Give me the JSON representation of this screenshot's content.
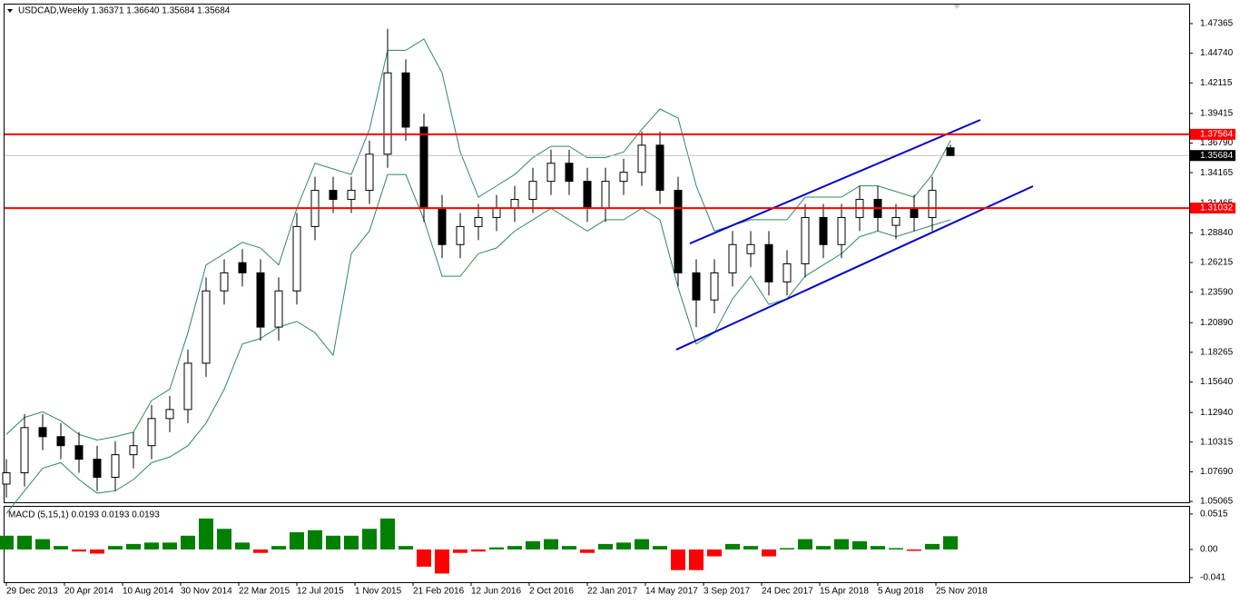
{
  "chart_data": {
    "type": "candlestick",
    "title": "USDCAD,Weekly  1.36371 1.36640 1.35684 1.35684",
    "x": [
      0,
      5,
      10,
      15,
      20,
      25,
      30,
      35,
      40,
      45,
      50,
      55,
      60,
      65,
      70,
      75,
      80,
      85,
      90,
      95,
      100,
      105,
      110,
      115,
      120,
      125,
      130,
      135,
      140,
      145,
      150,
      155,
      160,
      165,
      170,
      175,
      180,
      185,
      190,
      195,
      200,
      205,
      210,
      215,
      220,
      225,
      230,
      235,
      240,
      245,
      250,
      255,
      260
    ],
    "open": [
      1.066,
      1.076,
      1.116,
      1.108,
      1.1,
      1.088,
      1.072,
      1.092,
      1.1,
      1.124,
      1.132,
      1.173,
      1.237,
      1.262,
      1.253,
      1.205,
      1.237,
      1.294,
      1.326,
      1.318,
      1.326,
      1.358,
      1.43,
      1.382,
      1.31,
      1.278,
      1.294,
      1.302,
      1.31,
      1.318,
      1.334,
      1.35,
      1.334,
      1.31,
      1.334,
      1.342,
      1.366,
      1.326,
      1.253,
      1.229,
      1.253,
      1.27,
      1.278,
      1.245,
      1.261,
      1.302,
      1.278,
      1.302,
      1.318,
      1.295,
      1.31,
      1.302,
      1.36371
    ],
    "high": [
      1.088,
      1.128,
      1.128,
      1.12,
      1.112,
      1.1,
      1.104,
      1.112,
      1.136,
      1.144,
      1.185,
      1.249,
      1.265,
      1.274,
      1.265,
      1.249,
      1.306,
      1.338,
      1.338,
      1.338,
      1.37,
      1.469,
      1.442,
      1.394,
      1.322,
      1.306,
      1.314,
      1.322,
      1.33,
      1.346,
      1.362,
      1.362,
      1.346,
      1.346,
      1.354,
      1.378,
      1.378,
      1.338,
      1.265,
      1.265,
      1.29,
      1.29,
      1.29,
      1.273,
      1.314,
      1.314,
      1.314,
      1.33,
      1.33,
      1.314,
      1.322,
      1.338,
      1.3664
    ],
    "low": [
      1.054,
      1.064,
      1.096,
      1.088,
      1.076,
      1.06,
      1.06,
      1.08,
      1.088,
      1.112,
      1.12,
      1.161,
      1.225,
      1.241,
      1.193,
      1.193,
      1.225,
      1.282,
      1.306,
      1.306,
      1.314,
      1.346,
      1.37,
      1.298,
      1.266,
      1.266,
      1.282,
      1.29,
      1.298,
      1.306,
      1.322,
      1.322,
      1.298,
      1.298,
      1.322,
      1.33,
      1.314,
      1.241,
      1.205,
      1.217,
      1.241,
      1.258,
      1.233,
      1.233,
      1.249,
      1.266,
      1.266,
      1.29,
      1.29,
      1.283,
      1.29,
      1.29,
      1.35684
    ],
    "close": [
      1.076,
      1.116,
      1.108,
      1.1,
      1.088,
      1.072,
      1.092,
      1.1,
      1.124,
      1.132,
      1.173,
      1.237,
      1.253,
      1.253,
      1.205,
      1.237,
      1.294,
      1.326,
      1.318,
      1.326,
      1.358,
      1.43,
      1.382,
      1.31,
      1.278,
      1.294,
      1.302,
      1.31,
      1.318,
      1.334,
      1.35,
      1.334,
      1.31,
      1.334,
      1.342,
      1.366,
      1.326,
      1.253,
      1.229,
      1.253,
      1.278,
      1.278,
      1.245,
      1.261,
      1.302,
      1.278,
      1.302,
      1.318,
      1.302,
      1.302,
      1.302,
      1.326,
      1.35684
    ],
    "colors": {
      "up": "#ffffff",
      "down": "#000000",
      "outline": "#000000"
    },
    "xlim": [
      -0.5,
      325.75
    ],
    "xticks": [
      {
        "value": 0,
        "label": "29 Dec 2013"
      },
      {
        "value": 16,
        "label": "20 Apr 2014"
      },
      {
        "value": 32,
        "label": "10 Aug 2014"
      },
      {
        "value": 48,
        "label": "30 Nov 2014"
      },
      {
        "value": 64,
        "label": "22 Mar 2015"
      },
      {
        "value": 80,
        "label": "12 Jul 2015"
      },
      {
        "value": 96,
        "label": "1 Nov 2015"
      },
      {
        "value": 112,
        "label": "21 Feb 2016"
      },
      {
        "value": 128,
        "label": "12 Jun 2016"
      },
      {
        "value": 144,
        "label": "2 Oct 2016"
      },
      {
        "value": 160,
        "label": "22 Jan 2017"
      },
      {
        "value": 176,
        "label": "14 May 2017"
      },
      {
        "value": 192,
        "label": "3 Sep 2017"
      },
      {
        "value": 208,
        "label": "24 Dec 2017"
      },
      {
        "value": 224,
        "label": "15 Apr 2018"
      },
      {
        "value": 240,
        "label": "5 Aug 2018"
      },
      {
        "value": 256,
        "label": "25 Nov 2018"
      }
    ],
    "ylim": [
      1.0499,
      1.4905
    ],
    "yticks": [
      1.47365,
      {
        "value": 1.4474,
        "label": "1.44740"
      },
      1.42115,
      1.39415,
      {
        "value": 1.3679,
        "label": "1.36790"
      },
      1.34165,
      1.31465,
      {
        "value": 1.2884,
        "label": "1.28840"
      },
      1.26215,
      {
        "value": 1.2359,
        "label": "1.23590"
      },
      {
        "value": 1.2089,
        "label": "1.20890"
      },
      1.18265,
      {
        "value": 1.1564,
        "label": "1.15640"
      },
      {
        "value": 1.1294,
        "label": "1.12940"
      },
      1.10315,
      {
        "value": 1.0769,
        "label": "1.07690"
      },
      1.05065
    ],
    "levels": [
      {
        "value": 1.37564,
        "color": "#ff0000"
      },
      {
        "value": 1.31032,
        "color": "#ff0000"
      }
    ],
    "current_price": 1.35684,
    "bands": {
      "color": "#2e8b57",
      "upper": [
        1.11,
        1.125,
        1.13,
        1.122,
        1.11,
        1.105,
        1.108,
        1.112,
        1.14,
        1.15,
        1.2,
        1.26,
        1.27,
        1.28,
        1.275,
        1.26,
        1.31,
        1.35,
        1.345,
        1.34,
        1.38,
        1.45,
        1.45,
        1.46,
        1.43,
        1.36,
        1.32,
        1.33,
        1.34,
        1.355,
        1.365,
        1.365,
        1.355,
        1.355,
        1.36,
        1.38,
        1.398,
        1.39,
        1.33,
        1.29,
        1.295,
        1.3,
        1.3,
        1.3,
        1.32,
        1.32,
        1.32,
        1.33,
        1.33,
        1.325,
        1.32,
        1.34,
        1.37
      ],
      "lower": [
        1.04,
        1.06,
        1.08,
        1.085,
        1.07,
        1.058,
        1.06,
        1.07,
        1.085,
        1.09,
        1.1,
        1.12,
        1.15,
        1.19,
        1.195,
        1.205,
        1.21,
        1.2,
        1.18,
        1.27,
        1.29,
        1.34,
        1.34,
        1.3,
        1.25,
        1.25,
        1.27,
        1.275,
        1.29,
        1.3,
        1.31,
        1.3,
        1.29,
        1.3,
        1.3,
        1.31,
        1.3,
        1.24,
        1.19,
        1.2,
        1.23,
        1.25,
        1.225,
        1.23,
        1.25,
        1.26,
        1.27,
        1.285,
        1.29,
        1.285,
        1.29,
        1.295,
        1.3
      ]
    },
    "channel": [
      {
        "x": [
          188.25,
          268.25
        ],
        "y": [
          1.279,
          1.3884
        ],
        "color": "#0000cd"
      },
      {
        "x": [
          184.5,
          282.75
        ],
        "y": [
          1.185,
          1.3297
        ],
        "color": "#0000cd"
      }
    ],
    "indicator": {
      "type": "bar",
      "title": "MACD (5,15,1) 0.0193 0.0193 0.0193",
      "values": [
        0.02,
        0.02,
        0.015,
        0.005,
        -0.003,
        -0.006,
        0.005,
        0.008,
        0.01,
        0.01,
        0.02,
        0.045,
        0.03,
        0.01,
        -0.005,
        0.005,
        0.025,
        0.028,
        0.02,
        0.02,
        0.03,
        0.045,
        0.005,
        -0.025,
        -0.035,
        -0.005,
        -0.003,
        0.003,
        0.005,
        0.012,
        0.015,
        0.005,
        -0.005,
        0.008,
        0.01,
        0.015,
        0.005,
        -0.03,
        -0.03,
        -0.01,
        0.008,
        0.005,
        -0.01,
        0.002,
        0.015,
        0.005,
        0.015,
        0.012,
        0.005,
        0.002,
        -0.002,
        0.008,
        0.0193
      ],
      "colors": {
        "positive": "#008000",
        "negative": "#ff0000"
      },
      "ylim": [
        -0.0476,
        0.062
      ],
      "yticks": [
        0.0515,
        {
          "value": 0,
          "label": "0.00"
        },
        -0.041
      ]
    }
  }
}
